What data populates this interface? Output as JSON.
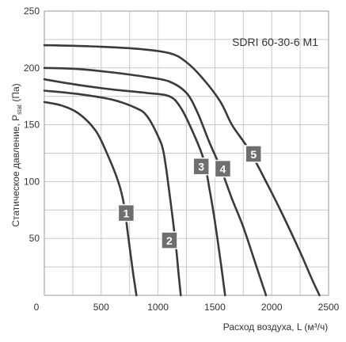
{
  "chart_data": {
    "type": "line",
    "model_label": "SDRI 60-30-6 M1",
    "xlabel": "Расход воздуха, L (м³/ч)",
    "ylabel_main": "Статическое давление, P",
    "ylabel_sub": "stat",
    "ylabel_unit": " (Па)",
    "xlim": [
      0,
      2500
    ],
    "ylim": [
      0,
      250
    ],
    "x_ticks": [
      "0",
      "500",
      "1000",
      "1500",
      "2000",
      "2500"
    ],
    "y_ticks": [
      "50",
      "100",
      "150",
      "200",
      "250"
    ],
    "grid": true,
    "series": [
      {
        "name": "1",
        "color": "#3a3a3a",
        "label_at": [
          720,
          72
        ],
        "points": [
          [
            0,
            170
          ],
          [
            150,
            167
          ],
          [
            300,
            160
          ],
          [
            450,
            145
          ],
          [
            550,
            125
          ],
          [
            650,
            100
          ],
          [
            700,
            80
          ],
          [
            740,
            50
          ],
          [
            780,
            20
          ],
          [
            810,
            0
          ]
        ]
      },
      {
        "name": "2",
        "color": "#3a3a3a",
        "label_at": [
          1100,
          48
        ],
        "points": [
          [
            0,
            180
          ],
          [
            300,
            177
          ],
          [
            600,
            172
          ],
          [
            800,
            165
          ],
          [
            900,
            158
          ],
          [
            1000,
            140
          ],
          [
            1050,
            125
          ],
          [
            1100,
            90
          ],
          [
            1150,
            50
          ],
          [
            1180,
            20
          ],
          [
            1200,
            0
          ]
        ]
      },
      {
        "name": "3",
        "color": "#3a3a3a",
        "label_at": [
          1380,
          113
        ],
        "points": [
          [
            0,
            190
          ],
          [
            300,
            185
          ],
          [
            600,
            181
          ],
          [
            900,
            178
          ],
          [
            1100,
            175
          ],
          [
            1200,
            165
          ],
          [
            1300,
            145
          ],
          [
            1400,
            120
          ],
          [
            1450,
            95
          ],
          [
            1500,
            65
          ],
          [
            1550,
            30
          ],
          [
            1590,
            0
          ]
        ]
      },
      {
        "name": "4",
        "color": "#3a3a3a",
        "label_at": [
          1570,
          111
        ],
        "points": [
          [
            0,
            200
          ],
          [
            300,
            199
          ],
          [
            600,
            196
          ],
          [
            900,
            192
          ],
          [
            1100,
            188
          ],
          [
            1250,
            178
          ],
          [
            1350,
            160
          ],
          [
            1450,
            135
          ],
          [
            1550,
            112
          ],
          [
            1650,
            85
          ],
          [
            1750,
            60
          ],
          [
            1850,
            30
          ],
          [
            1950,
            0
          ]
        ]
      },
      {
        "name": "5",
        "color": "#3a3a3a",
        "label_at": [
          1840,
          124
        ],
        "points": [
          [
            0,
            220
          ],
          [
            400,
            219
          ],
          [
            800,
            217
          ],
          [
            1100,
            213
          ],
          [
            1250,
            205
          ],
          [
            1400,
            190
          ],
          [
            1550,
            170
          ],
          [
            1650,
            150
          ],
          [
            1800,
            128
          ],
          [
            1950,
            100
          ],
          [
            2100,
            70
          ],
          [
            2250,
            38
          ],
          [
            2350,
            15
          ],
          [
            2420,
            0
          ]
        ]
      }
    ]
  }
}
